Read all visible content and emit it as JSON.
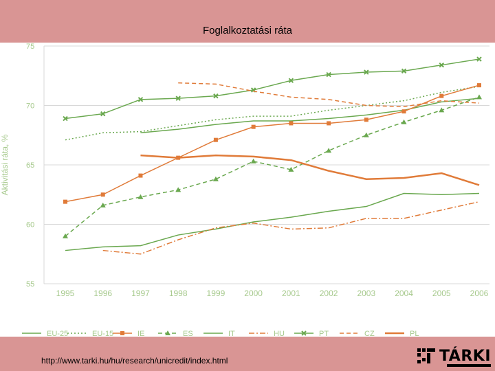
{
  "slide": {
    "title": "Foglalkoztatási ráta",
    "source_url": "http://www.tarki.hu/hu/research/unicredit/index.html",
    "logo_text": "TÁRKI"
  },
  "colors": {
    "band": "#d99594",
    "green": "#6aa84f",
    "orange": "#e07b39",
    "axis_text": "#a6c98c",
    "grid": "#d8d8d8"
  },
  "chart_data": {
    "type": "line",
    "title": "Foglalkoztatási ráta",
    "ylabel": "Aktivitási ráta, %",
    "xlabel": "",
    "ylim": [
      55,
      75
    ],
    "yticks": [
      55,
      60,
      65,
      70,
      75
    ],
    "categories": [
      "1995",
      "1996",
      "1997",
      "1998",
      "1999",
      "2000",
      "2001",
      "2002",
      "2003",
      "2004",
      "2005",
      "2006"
    ],
    "legend_position": "bottom",
    "series": [
      {
        "name": "EU-25",
        "color": "green",
        "dash": "solid",
        "marker": "none",
        "width": 1.5,
        "values": [
          null,
          null,
          67.7,
          68.0,
          68.4,
          68.7,
          68.7,
          68.9,
          69.2,
          69.6,
          70.3,
          70.6
        ]
      },
      {
        "name": "EU-15",
        "color": "green",
        "dash": "dotted",
        "marker": "none",
        "width": 1.5,
        "values": [
          67.1,
          67.7,
          67.8,
          68.3,
          68.8,
          69.1,
          69.1,
          69.6,
          70.0,
          70.4,
          71.1,
          71.6
        ]
      },
      {
        "name": "IE",
        "color": "orange",
        "dash": "solid",
        "marker": "square",
        "width": 1.5,
        "values": [
          61.9,
          62.5,
          64.1,
          65.6,
          67.1,
          68.2,
          68.5,
          68.5,
          68.8,
          69.5,
          70.8,
          71.7
        ]
      },
      {
        "name": "ES",
        "color": "green",
        "dash": "dashed",
        "marker": "triangle",
        "width": 1.5,
        "values": [
          59.0,
          61.6,
          62.3,
          62.9,
          63.8,
          65.3,
          64.6,
          66.2,
          67.5,
          68.6,
          69.6,
          70.7
        ]
      },
      {
        "name": "IT",
        "color": "green",
        "dash": "solid",
        "marker": "none",
        "width": 1.5,
        "values": [
          57.8,
          58.1,
          58.2,
          59.1,
          59.6,
          60.2,
          60.6,
          61.1,
          61.5,
          62.6,
          62.5,
          62.6
        ]
      },
      {
        "name": "HU",
        "color": "orange",
        "dash": "dashdot",
        "marker": "none",
        "width": 1.5,
        "values": [
          null,
          57.8,
          57.5,
          58.7,
          59.7,
          60.1,
          59.6,
          59.7,
          60.5,
          60.5,
          61.2,
          61.9
        ]
      },
      {
        "name": "PT",
        "color": "green",
        "dash": "solid",
        "marker": "x",
        "width": 1.5,
        "values": [
          68.9,
          69.3,
          70.5,
          70.6,
          70.8,
          71.3,
          72.1,
          72.6,
          72.8,
          72.9,
          73.4,
          73.9
        ]
      },
      {
        "name": "CZ",
        "color": "orange",
        "dash": "dashed",
        "marker": "none",
        "width": 1.5,
        "values": [
          null,
          null,
          null,
          71.9,
          71.8,
          71.2,
          70.7,
          70.5,
          70.0,
          69.9,
          70.4,
          70.2
        ]
      },
      {
        "name": "PL",
        "color": "orange",
        "dash": "solid",
        "marker": "none",
        "width": 2.5,
        "values": [
          null,
          null,
          65.8,
          65.6,
          65.8,
          65.7,
          65.4,
          64.5,
          63.8,
          63.9,
          64.3,
          63.3
        ]
      }
    ]
  }
}
